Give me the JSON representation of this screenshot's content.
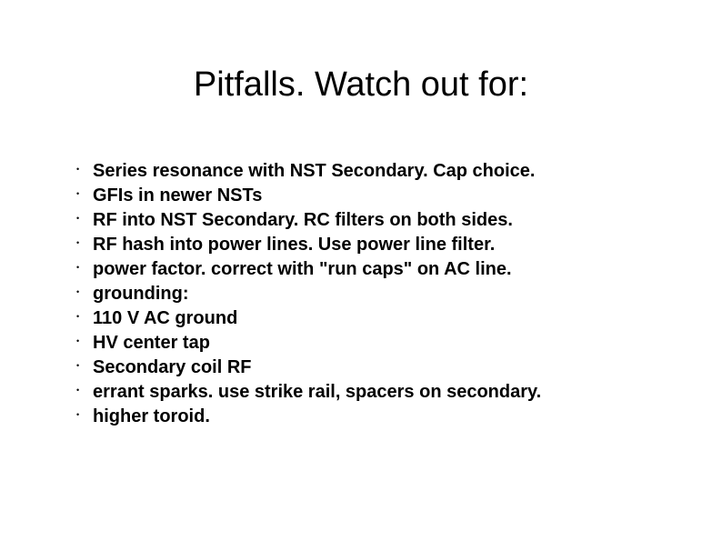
{
  "title": "Pitfalls. Watch out for:",
  "bullets": [
    {
      "text": "Series resonance with NST Secondary. Cap choice.",
      "indent": false
    },
    {
      "text": "GFIs in newer NSTs",
      "indent": false
    },
    {
      "text": "RF into NST Secondary.  RC filters on both sides.",
      "indent": false
    },
    {
      "text": "RF hash into power lines. Use power line filter.",
      "indent": false
    },
    {
      "text": "power factor. correct with \"run caps\" on AC line.",
      "indent": false
    },
    {
      "text": "grounding:",
      "indent": false
    },
    {
      "text": "  110 V AC ground",
      "indent": false
    },
    {
      "text": "  HV center tap",
      "indent": false
    },
    {
      "text": "  Secondary coil RF",
      "indent": false
    },
    {
      "text": "errant sparks. use strike rail, spacers on secondary.",
      "indent": false
    },
    {
      "text": "higher toroid.",
      "indent": false
    }
  ],
  "colors": {
    "background": "#ffffff",
    "text": "#000000"
  },
  "typography": {
    "title_fontsize": 38,
    "title_weight": "normal",
    "bullet_fontsize": 20,
    "bullet_weight": "bold",
    "font_family": "Arial"
  }
}
